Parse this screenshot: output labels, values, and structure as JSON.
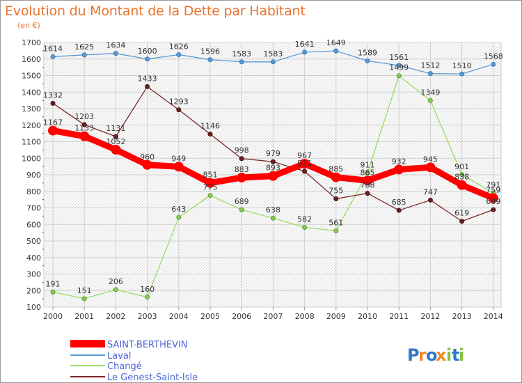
{
  "title": "Evolution du Montant de la Dette par Habitant",
  "unit": "(en €)",
  "logo": "Proxiti",
  "chart_data": {
    "type": "line",
    "title": "Evolution du Montant de la Dette par Habitant",
    "ylabel": "(en €)",
    "ylim": [
      100,
      1700
    ],
    "yticks": [
      100,
      200,
      300,
      400,
      500,
      600,
      700,
      800,
      900,
      1000,
      1100,
      1200,
      1300,
      1400,
      1500,
      1600,
      1700
    ],
    "grid": true,
    "legend": "bottom-left",
    "categories": [
      "2000",
      "2001",
      "2002",
      "2003",
      "2004",
      "2005",
      "2006",
      "2007",
      "2008",
      "2009",
      "2010",
      "2011",
      "2012",
      "2013",
      "2014"
    ],
    "series": [
      {
        "name": "SAINT-BERTHEVIN",
        "color": "#ff0000",
        "values": [
          1167,
          1133,
          1052,
          960,
          949,
          851,
          883,
          893,
          967,
          885,
          865,
          932,
          945,
          838,
          759
        ]
      },
      {
        "name": "Laval",
        "color": "#5b9bd5",
        "values": [
          1614,
          1625,
          1634,
          1600,
          1626,
          1596,
          1583,
          1583,
          1641,
          1649,
          1589,
          1561,
          1512,
          1510,
          1568
        ]
      },
      {
        "name": "Changé",
        "color": "#99dd66",
        "values": [
          191,
          151,
          206,
          160,
          643,
          775,
          689,
          638,
          582,
          561,
          911,
          1499,
          1349,
          901,
          791
        ]
      },
      {
        "name": "Le Genest-Saint-Isle",
        "color": "#7b2a2a",
        "values": [
          1332,
          1203,
          1131,
          1433,
          1293,
          1146,
          998,
          979,
          921,
          755,
          788,
          685,
          747,
          619,
          689
        ]
      }
    ]
  }
}
